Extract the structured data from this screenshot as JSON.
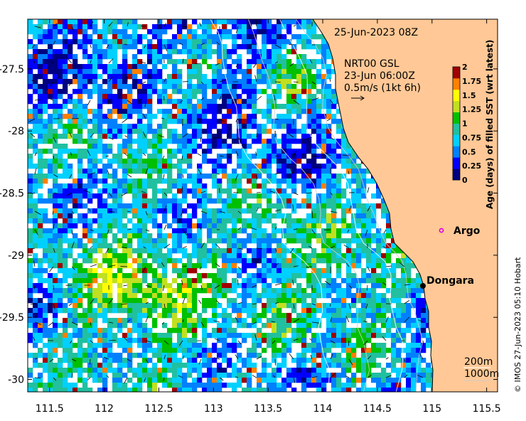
{
  "chart_data": {
    "type": "heatmap",
    "title": "25-Jun-2023 08Z",
    "product": "NRT00 GSL",
    "current_time": "23-Jun 06:00Z",
    "current_scale": "0.5m/s (1kt 6h)",
    "colorbar_label": "Age (days) of filled SST (wrt latest)",
    "colorbar_ticks": [
      "0",
      "0.25",
      "0.5",
      "0.75",
      "1",
      "1.25",
      "1.5",
      "1.75",
      "2"
    ],
    "colorbar_range": [
      0,
      2
    ],
    "colors": [
      "#000080",
      "#0000ff",
      "#0080ff",
      "#00d0ff",
      "#20c0a0",
      "#00c000",
      "#c0e020",
      "#ffff00",
      "#ff8000",
      "#a00000"
    ],
    "x_ticks": [
      "111.5",
      "112",
      "112.5",
      "113",
      "113.5",
      "114",
      "114.5",
      "115",
      "115.5"
    ],
    "x_values": [
      111.5,
      112,
      112.5,
      113,
      113.5,
      114,
      114.5,
      115,
      115.5
    ],
    "y_ticks": [
      "-27.5",
      "-28",
      "-28.5",
      "-29",
      "-29.5",
      "-30"
    ],
    "y_values": [
      -27.5,
      -28,
      -28.5,
      -29,
      -29.5,
      -30
    ],
    "xlim": [
      111.3,
      115.6
    ],
    "ylim": [
      -30.1,
      -27.1
    ],
    "places": [
      {
        "label": "Argo",
        "lon": 115.05,
        "lat": -28.85,
        "marker": "magenta-circle"
      },
      {
        "label": "Dongara",
        "lon": 114.93,
        "lat": -29.25,
        "marker": "black-dot"
      }
    ],
    "isobaths": [
      "200m",
      "1000m"
    ],
    "land_color": "#ffc896"
  },
  "credit": "© IMOS 27-Jun-2023 05:10 Hobart"
}
